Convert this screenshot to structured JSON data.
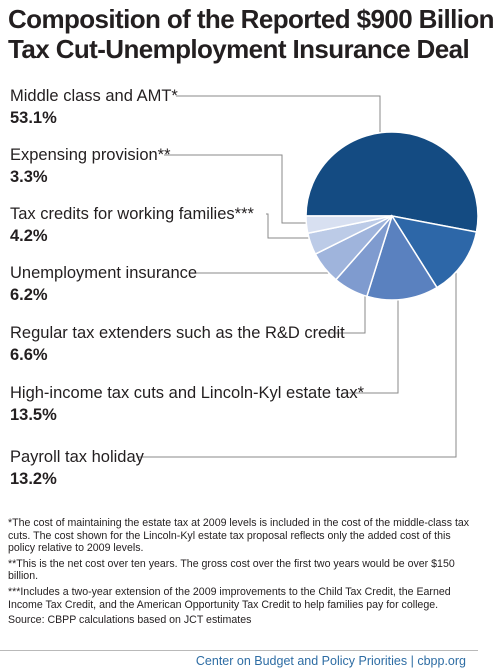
{
  "title": {
    "line1": "Composition of the Reported $900 Billion",
    "line2": "Tax Cut-Unemployment Insurance Deal"
  },
  "chart_data": {
    "type": "pie",
    "slices": [
      {
        "label": "Middle class and AMT*",
        "value": 53.1,
        "value_label": "53.1%",
        "color": "#144b82"
      },
      {
        "label": "Payroll tax holiday",
        "value": 13.2,
        "value_label": "13.2%",
        "color": "#2d67a8"
      },
      {
        "label": "High-income tax cuts and Lincoln-Kyl estate tax*",
        "value": 13.5,
        "value_label": "13.5%",
        "color": "#5a81bf"
      },
      {
        "label": "Regular tax extenders such as the R&D credit",
        "value": 6.6,
        "value_label": "6.6%",
        "color": "#7f9bcf"
      },
      {
        "label": "Unemployment insurance",
        "value": 6.2,
        "value_label": "6.2%",
        "color": "#9fb4dc"
      },
      {
        "label": "Tax credits for working families***",
        "value": 4.2,
        "value_label": "4.2%",
        "color": "#bccbe7"
      },
      {
        "label": "Expensing provision**",
        "value": 3.3,
        "value_label": "3.3%",
        "color": "#d8e0f1"
      }
    ]
  },
  "notes": [
    "*The cost of maintaining the estate tax at 2009 levels is included in the cost of the middle-class tax cuts.  The cost shown for the Lincoln-Kyl estate tax proposal reflects only the added cost of this policy relative to 2009 levels.",
    "**This is the net cost over ten years.  The gross cost over the first two years would be over $150 billion.",
    "***Includes a two-year extension of the 2009 improvements to the Child Tax Credit, the Earned Income Tax Credit, and the American Opportunity Tax Credit to help families pay for college.",
    "Source: CBPP calculations based on JCT estimates"
  ],
  "footer": {
    "org": "Center on Budget and Policy Priorities",
    "separator": "|",
    "site": "cbpp.org"
  }
}
